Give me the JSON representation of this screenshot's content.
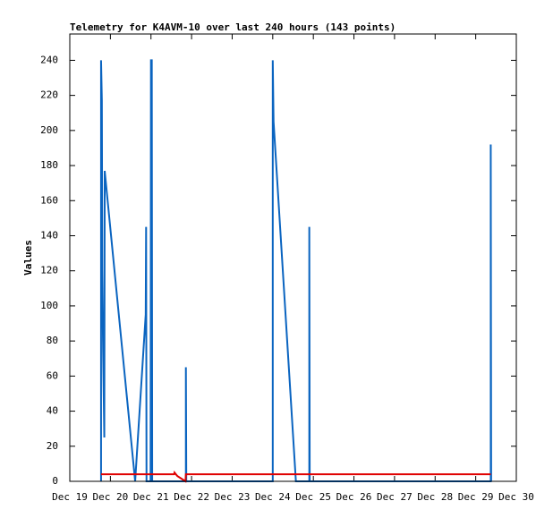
{
  "chart_data": {
    "type": "line",
    "title": "Telemetry for K4AVM-10 over last 240 hours (143 points)",
    "y_label": "Values",
    "xlim": [
      19,
      30
    ],
    "ylim": [
      0,
      255
    ],
    "xticks": [
      {
        "value": 19,
        "label": "Dec 19"
      },
      {
        "value": 20,
        "label": "Dec 20"
      },
      {
        "value": 21,
        "label": "Dec 21"
      },
      {
        "value": 22,
        "label": "Dec 22"
      },
      {
        "value": 23,
        "label": "Dec 23"
      },
      {
        "value": 24,
        "label": "Dec 24"
      },
      {
        "value": 25,
        "label": "Dec 25"
      },
      {
        "value": 26,
        "label": "Dec 26"
      },
      {
        "value": 27,
        "label": "Dec 27"
      },
      {
        "value": 28,
        "label": "Dec 28"
      },
      {
        "value": 29,
        "label": "Dec 29"
      },
      {
        "value": 30,
        "label": "Dec 30"
      }
    ],
    "yticks": [
      0,
      20,
      40,
      60,
      80,
      100,
      120,
      140,
      160,
      180,
      200,
      220,
      240
    ],
    "series": [
      {
        "color": "#0a64c0",
        "x": [
          19.77,
          19.77,
          19.79,
          19.8,
          19.82,
          19.85,
          19.86,
          20.61,
          20.87,
          20.88,
          20.89,
          20.99,
          21.0,
          21.02,
          21.03,
          21.86,
          21.86,
          21.87,
          24.0,
          24.0,
          24.02,
          24.57,
          24.9,
          24.9,
          24.91,
          29.37,
          29.37,
          29.38
        ],
        "values": [
          0,
          240,
          217,
          120,
          75,
          25,
          177,
          0,
          95,
          145,
          0,
          0,
          240,
          240,
          0,
          0,
          65,
          0,
          0,
          240,
          205,
          0,
          0,
          145,
          0,
          0,
          192,
          0
        ]
      },
      {
        "color": "#e00000",
        "x": [
          19.77,
          21.57,
          21.58,
          21.65,
          21.85,
          21.86,
          29.37
        ],
        "values": [
          4,
          4,
          5,
          3,
          0,
          4,
          4
        ]
      }
    ]
  }
}
